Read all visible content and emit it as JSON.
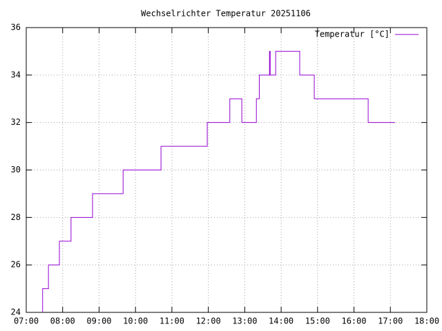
{
  "chart_data": {
    "type": "line",
    "title": "Wechselrichter Temperatur 20251106",
    "x": [
      7.45,
      7.45,
      7.61,
      7.61,
      7.91,
      7.91,
      8.23,
      8.23,
      8.82,
      8.82,
      9.66,
      9.66,
      10.7,
      10.7,
      11.97,
      11.97,
      12.59,
      12.59,
      12.92,
      12.92,
      13.32,
      13.32,
      13.4,
      13.4,
      13.68,
      13.68,
      13.7,
      13.7,
      13.85,
      13.85,
      14.51,
      14.51,
      14.91,
      14.91,
      16.39,
      16.39,
      17.13
    ],
    "series": [
      {
        "name": "Temperatur [°C]",
        "color": "#9400d3",
        "values": [
          24,
          25,
          25,
          26,
          26,
          27,
          27,
          28,
          28,
          29,
          29,
          30,
          30,
          31,
          31,
          32,
          32,
          33,
          33,
          32,
          32,
          33,
          33,
          34,
          34,
          35,
          35,
          34,
          34,
          35,
          35,
          34,
          34,
          33,
          33,
          32,
          32
        ]
      }
    ],
    "xlim": [
      7,
      18
    ],
    "xticks": [
      {
        "value": 7,
        "label": "07:00"
      },
      {
        "value": 8,
        "label": "08:00"
      },
      {
        "value": 9,
        "label": "09:00"
      },
      {
        "value": 10,
        "label": "10:00"
      },
      {
        "value": 11,
        "label": "11:00"
      },
      {
        "value": 12,
        "label": "12:00"
      },
      {
        "value": 13,
        "label": "13:00"
      },
      {
        "value": 14,
        "label": "14:00"
      },
      {
        "value": 15,
        "label": "15:00"
      },
      {
        "value": 16,
        "label": "16:00"
      },
      {
        "value": 17,
        "label": "17:00"
      },
      {
        "value": 18,
        "label": "18:00"
      }
    ],
    "ylim": [
      24,
      36
    ],
    "yticks": [
      24,
      26,
      28,
      30,
      32,
      34,
      36
    ],
    "grid": true,
    "legend": "top-right"
  }
}
